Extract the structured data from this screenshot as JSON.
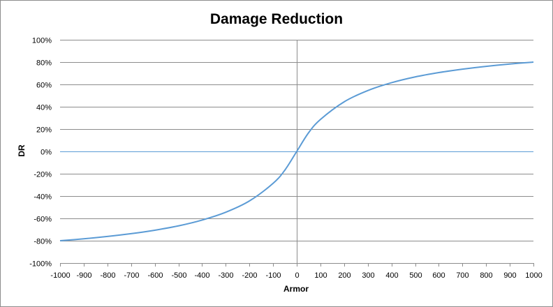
{
  "chart_data": {
    "type": "line",
    "title": "Damage Reduction",
    "xlabel": "Armor",
    "ylabel": "DR",
    "xlim": [
      -1000,
      1000
    ],
    "ylim": [
      -100,
      100
    ],
    "x_ticks": [
      -1000,
      -900,
      -800,
      -700,
      -600,
      -500,
      -400,
      -300,
      -200,
      -100,
      0,
      100,
      200,
      300,
      400,
      500,
      600,
      700,
      800,
      900,
      1000
    ],
    "x_tick_labels": [
      "-1000",
      "-900",
      "-800",
      "-700",
      "-600",
      "-500",
      "-400",
      "-300",
      "-200",
      "-100",
      "0",
      "100",
      "200",
      "300",
      "400",
      "500",
      "600",
      "700",
      "800",
      "900",
      "1000"
    ],
    "y_ticks": [
      -100,
      -80,
      -60,
      -40,
      -20,
      0,
      20,
      40,
      60,
      80,
      100
    ],
    "y_tick_labels": [
      "-100%",
      "-80%",
      "-60%",
      "-40%",
      "-20%",
      "0%",
      "20%",
      "40%",
      "60%",
      "80%",
      "100%"
    ],
    "grid": "horizontal",
    "series": [
      {
        "color": "#5b9bd5",
        "x": [
          -1000,
          -900,
          -800,
          -700,
          -600,
          -500,
          -400,
          -300,
          -200,
          -100,
          -50,
          0,
          50,
          100,
          200,
          300,
          400,
          500,
          600,
          700,
          800,
          900,
          1000
        ],
        "y": [
          -80,
          -78.3,
          -76.2,
          -73.7,
          -70.6,
          -66.7,
          -61.5,
          -54.5,
          -44.4,
          -28.6,
          -16.7,
          0,
          16.7,
          28.6,
          44.4,
          54.5,
          61.5,
          66.7,
          70.6,
          73.7,
          76.2,
          78.3,
          80
        ]
      }
    ],
    "colors": {
      "grid": "#8c8c8c",
      "axis": "#8c8c8c",
      "line": "#5b9bd5"
    }
  }
}
